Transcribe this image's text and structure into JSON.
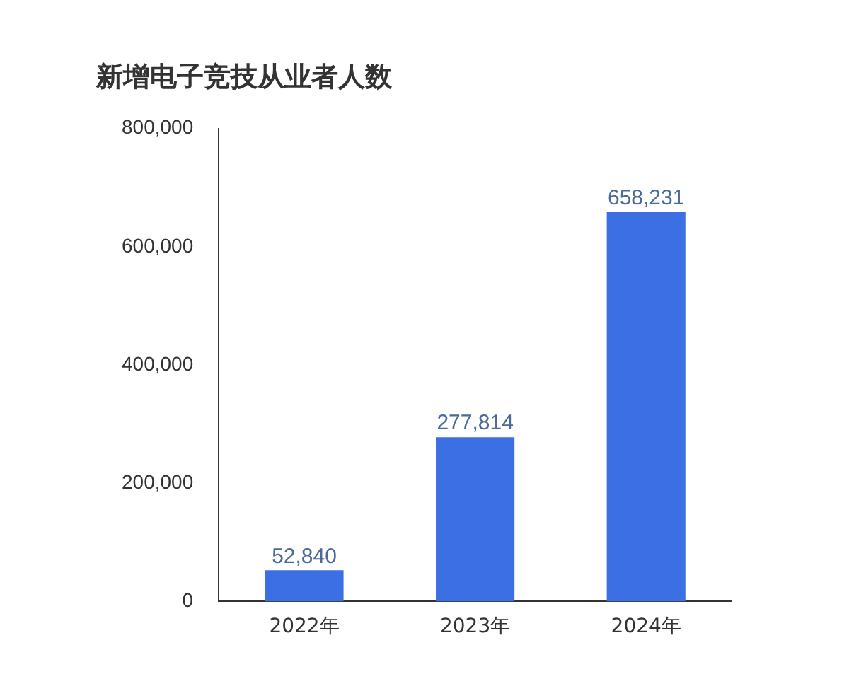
{
  "chart_data": {
    "type": "bar",
    "title": "新增电子竞技从业者人数",
    "categories": [
      "2022年",
      "2023年",
      "2024年"
    ],
    "values": [
      52840,
      277814,
      658231
    ],
    "color": "#3b6fe3",
    "value_labels": [
      "52,840",
      "277,814",
      "658,231"
    ],
    "ylim": [
      0,
      800000
    ],
    "yticks": [
      0,
      {
        "value": 200000,
        "label": "200,000"
      },
      {
        "value": 400000,
        "label": "400,000"
      },
      {
        "value": 600000,
        "label": "600,000"
      },
      {
        "value": 800000,
        "label": "800,000"
      }
    ],
    "grid": false,
    "legend": false
  }
}
